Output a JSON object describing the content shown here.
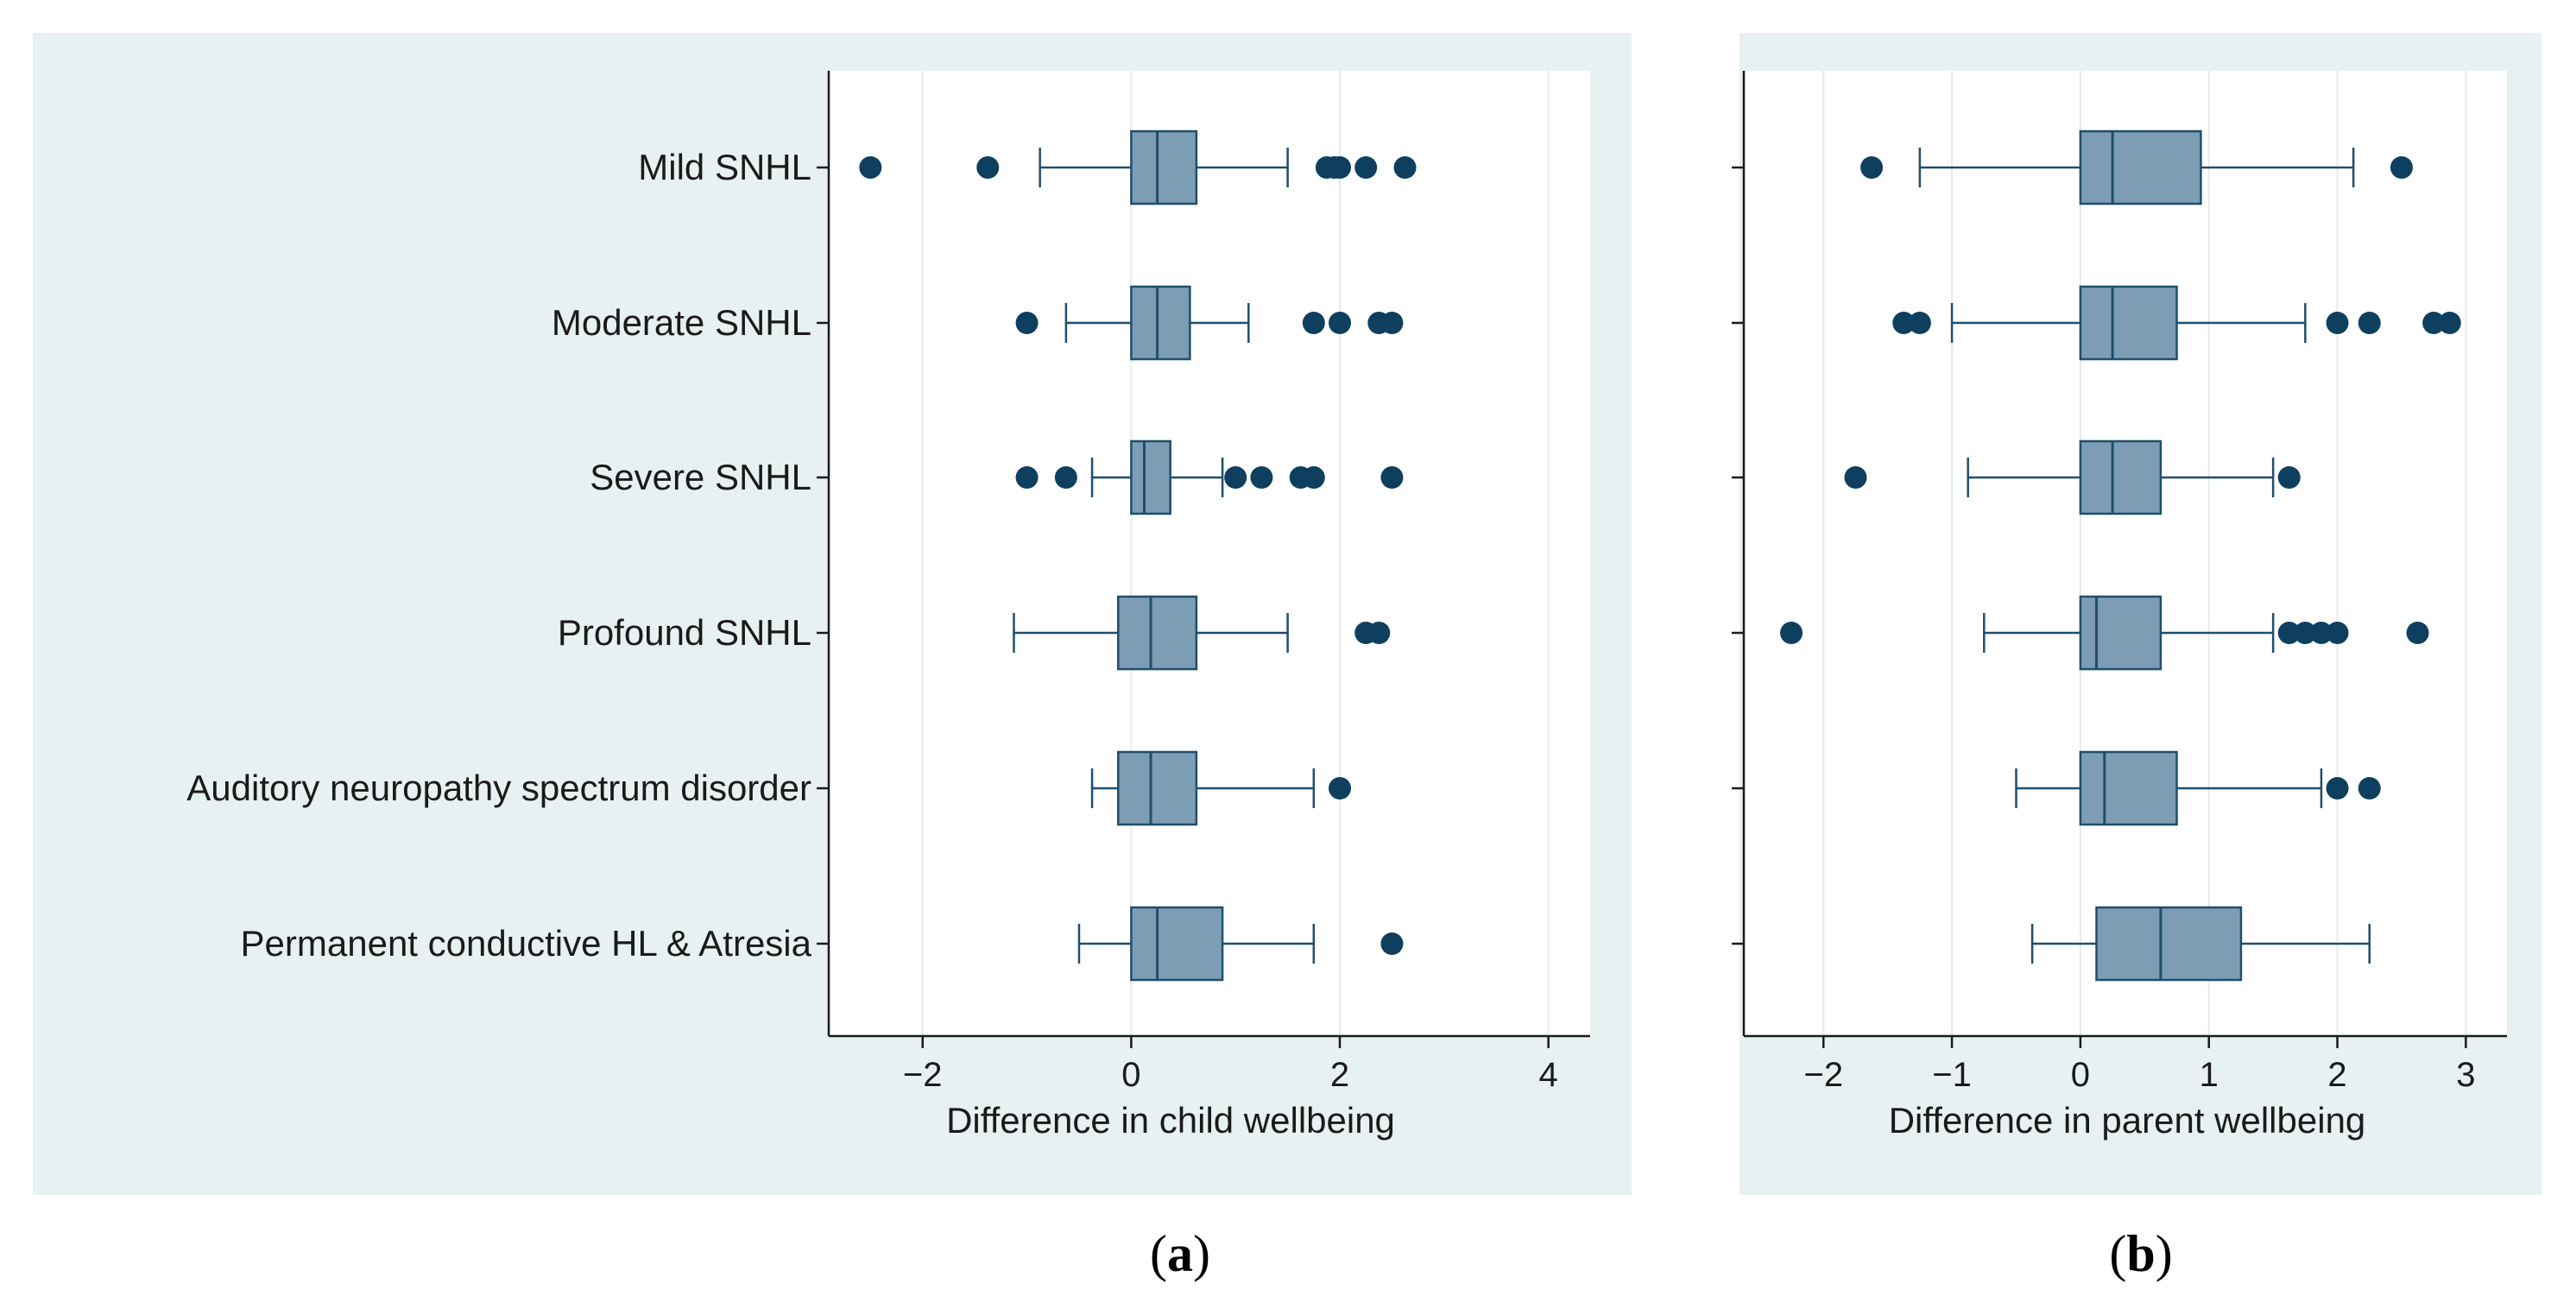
{
  "colors": {
    "panel_bg": "#e8f1f1",
    "plot_bg": "#ffffff",
    "box_fill": "#7c9db4",
    "stroke": "#1f4e6e",
    "outlier": "#0f3f5f",
    "grid": "#e2ecee",
    "axis": "#1a1a1a"
  },
  "categories": [
    "Mild SNHL",
    "Moderate SNHL",
    "Severe SNHL",
    "Profound SNHL",
    "Auditory neuropathy spectrum disorder",
    "Permanent conductive HL & Atresia"
  ],
  "chart_data": [
    {
      "type": "box",
      "panel": "a",
      "caption": "a",
      "xlabel": "Difference in child wellbeing",
      "xlim": [
        -2.9,
        4.4
      ],
      "xticks": [
        -2,
        0,
        2,
        4
      ],
      "tick_labels": [
        "−2",
        "0",
        "2",
        "4"
      ],
      "grid": true,
      "boxes": [
        {
          "category": "Mild SNHL",
          "whisker_low": -0.875,
          "q1": 0.0,
          "median": 0.25,
          "q3": 0.625,
          "whisker_high": 1.5,
          "outliers": [
            -2.5,
            -1.375,
            1.875,
            1.95,
            2.0,
            2.25,
            2.625
          ]
        },
        {
          "category": "Moderate SNHL",
          "whisker_low": -0.625,
          "q1": 0.0,
          "median": 0.25,
          "q3": 0.5625,
          "whisker_high": 1.125,
          "outliers": [
            -1.0,
            1.75,
            2.0,
            2.375,
            2.5
          ]
        },
        {
          "category": "Severe SNHL",
          "whisker_low": -0.375,
          "q1": 0.0,
          "median": 0.125,
          "q3": 0.375,
          "whisker_high": 0.875,
          "outliers": [
            -1.0,
            -0.625,
            1.0,
            1.25,
            1.625,
            1.75,
            2.5
          ]
        },
        {
          "category": "Profound SNHL",
          "whisker_low": -1.125,
          "q1": -0.125,
          "median": 0.1875,
          "q3": 0.625,
          "whisker_high": 1.5,
          "outliers": [
            2.25,
            2.375
          ]
        },
        {
          "category": "Auditory neuropathy spectrum disorder",
          "whisker_low": -0.375,
          "q1": -0.125,
          "median": 0.1875,
          "q3": 0.625,
          "whisker_high": 1.75,
          "outliers": [
            2.0
          ]
        },
        {
          "category": "Permanent conductive HL & Atresia",
          "whisker_low": -0.5,
          "q1": 0.0,
          "median": 0.25,
          "q3": 0.875,
          "whisker_high": 1.75,
          "outliers": [
            2.5
          ]
        }
      ]
    },
    {
      "type": "box",
      "panel": "b",
      "caption": "b",
      "xlabel": "Difference in parent wellbeing",
      "xlim": [
        -2.62,
        3.32
      ],
      "xticks": [
        -2,
        -1,
        0,
        1,
        2,
        3
      ],
      "tick_labels": [
        "−2",
        "−1",
        "0",
        "1",
        "2",
        "3"
      ],
      "grid": true,
      "boxes": [
        {
          "category": "Mild SNHL",
          "whisker_low": -1.25,
          "q1": 0.0,
          "median": 0.25,
          "q3": 0.9375,
          "whisker_high": 2.125,
          "outliers": [
            -1.625,
            2.5
          ]
        },
        {
          "category": "Moderate SNHL",
          "whisker_low": -1.0,
          "q1": 0.0,
          "median": 0.25,
          "q3": 0.75,
          "whisker_high": 1.75,
          "outliers": [
            -1.375,
            -1.25,
            2.0,
            2.25,
            2.75,
            2.875
          ]
        },
        {
          "category": "Severe SNHL",
          "whisker_low": -0.875,
          "q1": 0.0,
          "median": 0.25,
          "q3": 0.625,
          "whisker_high": 1.5,
          "outliers": [
            -1.75,
            1.625
          ]
        },
        {
          "category": "Profound SNHL",
          "whisker_low": -0.75,
          "q1": 0.0,
          "median": 0.125,
          "q3": 0.625,
          "whisker_high": 1.5,
          "outliers": [
            -2.25,
            1.625,
            1.75,
            1.875,
            2.0,
            2.625
          ]
        },
        {
          "category": "Auditory neuropathy spectrum disorder",
          "whisker_low": -0.5,
          "q1": 0.0,
          "median": 0.1875,
          "q3": 0.75,
          "whisker_high": 1.875,
          "outliers": [
            2.0,
            2.25
          ]
        },
        {
          "category": "Permanent conductive HL & Atresia",
          "whisker_low": -0.375,
          "q1": 0.125,
          "median": 0.625,
          "q3": 1.25,
          "whisker_high": 2.25,
          "outliers": []
        }
      ]
    }
  ]
}
